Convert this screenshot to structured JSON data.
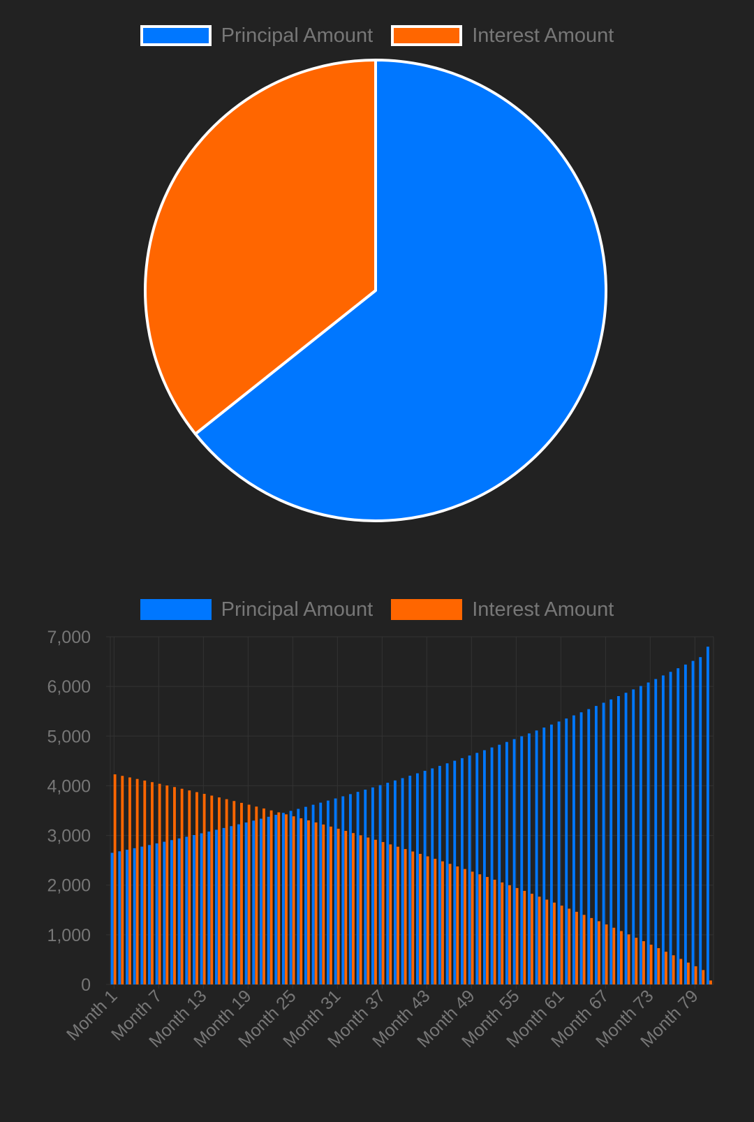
{
  "colors": {
    "principal": "#0077FF",
    "interest": "#FF6600",
    "background": "#222222",
    "text": "#777777",
    "grid": "#333333",
    "slice_border": "#FFFFFF"
  },
  "chart_data": [
    {
      "type": "pie",
      "legend_position": "top",
      "labels": [
        "Principal Amount",
        "Interest Amount"
      ],
      "values": [
        64.3,
        35.7
      ]
    },
    {
      "type": "bar",
      "legend_position": "top",
      "grid": true,
      "ylim": [
        0,
        7000
      ],
      "yticks": [
        "0",
        "1,000",
        "2,000",
        "3,000",
        "4,000",
        "5,000",
        "6,000",
        "7,000"
      ],
      "yticks_values": [
        0,
        1000,
        2000,
        3000,
        4000,
        5000,
        6000,
        7000
      ],
      "xtick_labels": [
        "Month 1",
        "Month 7",
        "Month 13",
        "Month 19",
        "Month 25",
        "Month 31",
        "Month 37",
        "Month 43",
        "Month 49",
        "Month 55",
        "Month 61",
        "Month 67",
        "Month 73",
        "Month 79"
      ],
      "xtick_indices": [
        0,
        6,
        12,
        18,
        24,
        30,
        36,
        42,
        48,
        54,
        60,
        66,
        72,
        78
      ],
      "month_count": 81,
      "series": [
        {
          "name": "Principal Amount",
          "values": [
            2650,
            2681,
            2712,
            2743,
            2775,
            2807,
            2840,
            2873,
            2906,
            2940,
            2974,
            3008,
            3043,
            3078,
            3114,
            3150,
            3187,
            3224,
            3261,
            3299,
            3337,
            3376,
            3415,
            3455,
            3495,
            3535,
            3576,
            3618,
            3660,
            3702,
            3745,
            3788,
            3832,
            3877,
            3922,
            3967,
            4013,
            4060,
            4107,
            4154,
            4203,
            4251,
            4301,
            4350,
            4401,
            4452,
            4504,
            4556,
            4609,
            4662,
            4716,
            4771,
            4826,
            4882,
            4939,
            4996,
            5054,
            5113,
            5172,
            5232,
            5293,
            5354,
            5417,
            5479,
            5543,
            5607,
            5672,
            5738,
            5805,
            5872,
            5940,
            6009,
            6079,
            6149,
            6221,
            6293,
            6366,
            6440,
            6514,
            6590,
            6800
          ]
        },
        {
          "name": "Interest Amount",
          "values": [
            4230,
            4199,
            4168,
            4137,
            4105,
            4073,
            4040,
            4007,
            3974,
            3940,
            3906,
            3872,
            3837,
            3802,
            3766,
            3730,
            3693,
            3656,
            3619,
            3581,
            3543,
            3504,
            3465,
            3425,
            3385,
            3345,
            3304,
            3262,
            3220,
            3178,
            3135,
            3092,
            3048,
            3003,
            2958,
            2913,
            2867,
            2820,
            2773,
            2726,
            2677,
            2629,
            2579,
            2530,
            2479,
            2428,
            2376,
            2324,
            2271,
            2218,
            2164,
            2109,
            2054,
            1998,
            1941,
            1884,
            1826,
            1767,
            1708,
            1648,
            1587,
            1526,
            1463,
            1401,
            1337,
            1273,
            1208,
            1142,
            1075,
            1008,
            940,
            871,
            801,
            731,
            659,
            587,
            514,
            440,
            366,
            290,
            80
          ]
        }
      ]
    }
  ]
}
